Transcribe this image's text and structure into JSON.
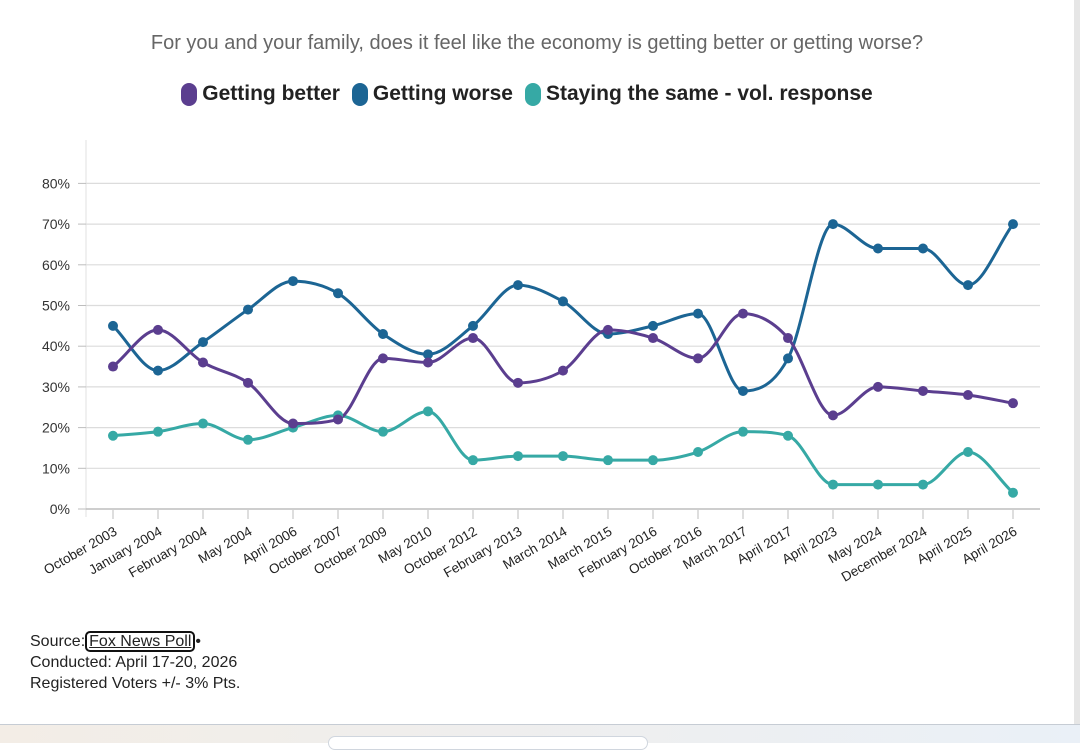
{
  "chart_data": {
    "type": "line",
    "title": "For you and your family, does it feel like the economy is getting better or getting worse?",
    "categories": [
      "October 2003",
      "January 2004",
      "February 2004",
      "May 2004",
      "April 2006",
      "October 2007",
      "October 2009",
      "May 2010",
      "October 2012",
      "February 2013",
      "March 2014",
      "March 2015",
      "February 2016",
      "October 2016",
      "March 2017",
      "April 2017",
      "April 2023",
      "May 2024",
      "December 2024",
      "April 2025",
      "April 2026"
    ],
    "y_ticks": [
      "0%",
      "10%",
      "20%",
      "30%",
      "40%",
      "50%",
      "60%",
      "70%",
      "80%"
    ],
    "ylim": [
      0,
      80
    ],
    "grid": true,
    "legend_position": "top-center",
    "series": [
      {
        "name": "Getting better",
        "color": "#5b3e8f",
        "values": [
          35,
          44,
          36,
          31,
          21,
          22,
          37,
          36,
          42,
          31,
          34,
          44,
          42,
          37,
          48,
          42,
          23,
          30,
          29,
          28,
          26
        ]
      },
      {
        "name": "Getting worse",
        "color": "#1c6594",
        "values": [
          45,
          34,
          41,
          49,
          56,
          53,
          43,
          38,
          45,
          55,
          51,
          43,
          45,
          48,
          29,
          37,
          70,
          64,
          64,
          55,
          70
        ]
      },
      {
        "name": "Staying the same - vol. response",
        "color": "#36a9a5",
        "values": [
          18,
          19,
          21,
          17,
          20,
          23,
          19,
          24,
          12,
          13,
          13,
          12,
          12,
          14,
          19,
          18,
          6,
          6,
          6,
          14,
          4
        ]
      }
    ]
  },
  "source": {
    "label": "Source:",
    "link_text": "Fox News Poll",
    "bullet": "•",
    "conducted": "Conducted: April 17-20, 2026",
    "note": "Registered Voters +/- 3% Pts."
  }
}
